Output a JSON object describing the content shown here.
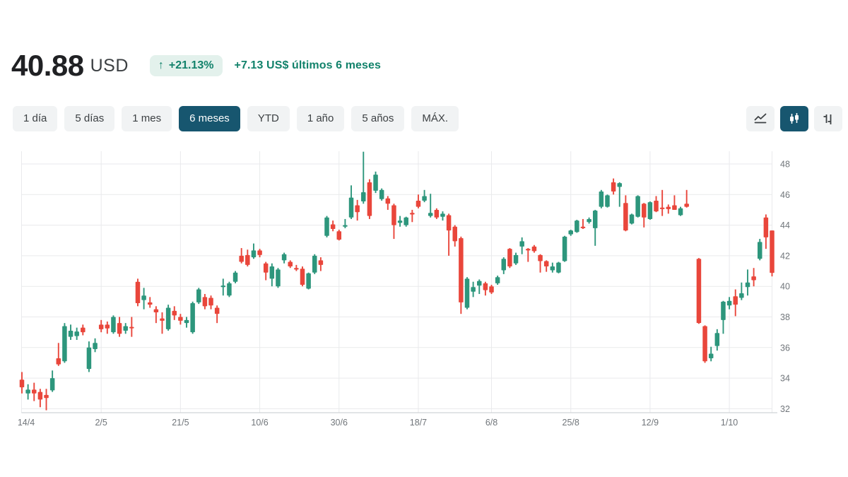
{
  "header": {
    "price": "40.88",
    "currency": "USD",
    "arrow": "↑",
    "change_percent": "+21.13%",
    "change_summary": "+7.13 US$ últimos 6 meses"
  },
  "range_buttons": [
    {
      "label": "1 día",
      "selected": false
    },
    {
      "label": "5 días",
      "selected": false
    },
    {
      "label": "1 mes",
      "selected": false
    },
    {
      "label": "6 meses",
      "selected": true
    },
    {
      "label": "YTD",
      "selected": false
    },
    {
      "label": "1 año",
      "selected": false
    },
    {
      "label": "5 años",
      "selected": false
    },
    {
      "label": "MÁX.",
      "selected": false
    }
  ],
  "chart_type_buttons": [
    {
      "name": "line-chart",
      "selected": false
    },
    {
      "name": "candlestick-chart",
      "selected": true
    },
    {
      "name": "ohlc-chart",
      "selected": false
    }
  ],
  "colors": {
    "up": "#2d967c",
    "down": "#e9463b",
    "accent_selected": "#17566f",
    "positive_text": "#12826b",
    "positive_badge_bg": "#e3f1ec",
    "grid": "#e9eaec",
    "axis_line": "#c6c9cc",
    "tick_text": "#70757a"
  },
  "chart_data": {
    "type": "candlestick",
    "ylim": [
      31.5,
      49
    ],
    "y_ticks": [
      48,
      46,
      44,
      42,
      40,
      38,
      36,
      34,
      32
    ],
    "x_tick_labels": [
      "14/4",
      "2/5",
      "21/5",
      "10/6",
      "30/6",
      "18/7",
      "6/8",
      "25/8",
      "12/9",
      "1/10"
    ],
    "x_tick_indices": [
      0,
      13,
      26,
      39,
      52,
      65,
      77,
      90,
      103,
      116
    ],
    "grid": true,
    "legend": "none",
    "series_note": "candles are [open, high, low, close]; null = session gap",
    "candles": [
      [
        33.9,
        34.4,
        33.0,
        33.4
      ],
      [
        33.0,
        33.6,
        32.6,
        33.25
      ],
      [
        33.25,
        33.7,
        32.5,
        33.0
      ],
      [
        33.1,
        33.3,
        32.1,
        32.6
      ],
      [
        32.9,
        33.3,
        31.9,
        32.7
      ],
      [
        33.2,
        34.5,
        33.1,
        34.0
      ],
      [
        35.3,
        36.3,
        34.8,
        34.9
      ],
      [
        35.1,
        37.6,
        35.0,
        37.4
      ],
      [
        36.7,
        37.5,
        36.5,
        37.1
      ],
      [
        36.75,
        37.3,
        36.5,
        37.05
      ],
      [
        37.3,
        37.5,
        36.8,
        37.0
      ],
      [
        34.6,
        36.4,
        34.4,
        36.0
      ],
      [
        35.9,
        36.6,
        35.7,
        36.3
      ],
      [
        37.5,
        37.8,
        37.0,
        37.2
      ],
      [
        37.5,
        37.7,
        36.9,
        37.25
      ],
      [
        37.0,
        38.1,
        36.9,
        38.0
      ],
      [
        37.6,
        38.0,
        36.7,
        36.9
      ],
      [
        37.1,
        37.6,
        36.9,
        37.4
      ],
      [
        37.35,
        38.0,
        36.7,
        37.3
      ],
      [
        40.3,
        40.5,
        38.7,
        38.9
      ],
      [
        39.1,
        39.9,
        38.5,
        39.4
      ],
      [
        38.95,
        39.3,
        38.6,
        38.8
      ],
      [
        38.5,
        38.7,
        37.6,
        38.3
      ],
      [
        37.9,
        38.3,
        36.9,
        37.75
      ],
      [
        37.2,
        38.8,
        37.1,
        38.6
      ],
      [
        38.4,
        38.7,
        37.8,
        38.1
      ],
      [
        38.0,
        38.2,
        37.5,
        37.75
      ],
      [
        37.6,
        38.0,
        37.3,
        37.8
      ],
      [
        37.0,
        39.0,
        36.9,
        38.9
      ],
      [
        38.95,
        39.9,
        38.85,
        39.8
      ],
      [
        39.3,
        39.5,
        38.5,
        38.7
      ],
      [
        39.25,
        39.4,
        38.5,
        38.75
      ],
      [
        38.6,
        38.75,
        37.6,
        38.2
      ],
      [
        39.95,
        40.5,
        39.4,
        40.05
      ],
      [
        39.4,
        40.3,
        39.3,
        40.2
      ],
      [
        40.3,
        41.0,
        40.2,
        40.9
      ],
      [
        42.0,
        42.5,
        41.5,
        41.6
      ],
      [
        42.05,
        42.4,
        41.3,
        41.4
      ],
      [
        41.9,
        42.8,
        41.8,
        42.35
      ],
      [
        42.35,
        42.45,
        41.9,
        42.05
      ],
      [
        41.5,
        41.6,
        40.4,
        40.9
      ],
      [
        40.5,
        41.5,
        40.0,
        41.3
      ],
      [
        40.0,
        41.2,
        39.9,
        41.1
      ],
      [
        41.7,
        42.2,
        41.5,
        42.1
      ],
      [
        41.6,
        41.7,
        41.2,
        41.3
      ],
      [
        41.2,
        41.4,
        41.0,
        41.1
      ],
      [
        41.15,
        41.3,
        40.0,
        40.1
      ],
      [
        39.85,
        40.9,
        39.8,
        40.85
      ],
      [
        40.9,
        42.1,
        40.8,
        42.0
      ],
      [
        41.7,
        41.9,
        41.0,
        41.4
      ],
      [
        43.3,
        44.6,
        43.2,
        44.5
      ],
      [
        44.05,
        44.3,
        43.6,
        43.75
      ],
      [
        43.6,
        43.7,
        43.0,
        43.05
      ],
      [
        43.9,
        44.4,
        43.8,
        44.0
      ],
      [
        44.5,
        46.6,
        44.4,
        45.8
      ],
      [
        45.3,
        45.65,
        44.3,
        44.85
      ],
      [
        45.55,
        48.8,
        45.4,
        46.15
      ],
      [
        46.8,
        47.0,
        44.4,
        44.6
      ],
      [
        46.25,
        47.5,
        46.1,
        47.3
      ],
      [
        45.7,
        46.4,
        45.6,
        46.3
      ],
      [
        45.75,
        45.9,
        45.0,
        45.4
      ],
      [
        45.3,
        45.4,
        43.1,
        44.0
      ],
      [
        44.15,
        44.6,
        43.9,
        44.3
      ],
      [
        44.0,
        44.55,
        43.9,
        44.5
      ],
      [
        44.8,
        45.0,
        44.2,
        44.7
      ],
      [
        45.6,
        46.0,
        45.1,
        45.2
      ],
      [
        45.6,
        46.3,
        45.5,
        45.9
      ],
      [
        44.6,
        46.05,
        44.5,
        44.8
      ],
      [
        45.0,
        45.1,
        44.4,
        44.5
      ],
      [
        44.55,
        44.9,
        44.3,
        44.75
      ],
      [
        44.65,
        44.75,
        42.0,
        43.65
      ],
      [
        43.9,
        44.0,
        42.6,
        42.95
      ],
      [
        43.15,
        43.25,
        38.2,
        38.95
      ],
      [
        38.6,
        40.6,
        38.5,
        40.5
      ],
      [
        39.65,
        40.3,
        39.3,
        39.95
      ],
      [
        40.05,
        40.45,
        39.5,
        40.35
      ],
      [
        40.2,
        40.3,
        39.4,
        39.75
      ],
      [
        40.0,
        40.1,
        39.5,
        39.6
      ],
      [
        40.2,
        40.7,
        40.1,
        40.6
      ],
      [
        41.05,
        41.9,
        40.8,
        41.8
      ],
      [
        42.45,
        42.5,
        41.2,
        41.3
      ],
      [
        41.5,
        42.2,
        41.4,
        42.05
      ],
      [
        42.6,
        43.2,
        42.1,
        42.95
      ],
      [
        42.45,
        42.5,
        41.6,
        42.35
      ],
      [
        42.6,
        42.7,
        42.2,
        42.3
      ],
      [
        42.05,
        42.1,
        40.9,
        41.65
      ],
      [
        41.65,
        41.7,
        40.95,
        41.3
      ],
      [
        41.05,
        41.55,
        40.9,
        41.3
      ],
      [
        40.9,
        41.6,
        40.85,
        41.55
      ],
      [
        41.65,
        43.3,
        41.6,
        43.25
      ],
      [
        43.4,
        43.7,
        43.3,
        43.65
      ],
      [
        43.55,
        44.35,
        43.5,
        44.3
      ],
      [
        43.9,
        44.4,
        43.75,
        43.8
      ],
      [
        44.2,
        44.5,
        44.1,
        44.4
      ],
      [
        43.8,
        45.0,
        42.65,
        44.95
      ],
      [
        45.2,
        46.3,
        45.1,
        46.2
      ],
      [
        45.2,
        46.0,
        45.15,
        45.95
      ],
      [
        46.8,
        47.05,
        46.0,
        46.2
      ],
      [
        46.5,
        46.8,
        45.2,
        46.75
      ],
      [
        45.45,
        45.95,
        43.6,
        43.65
      ],
      [
        44.1,
        44.75,
        44.05,
        44.7
      ],
      [
        44.55,
        45.95,
        44.5,
        45.9
      ],
      [
        45.4,
        45.45,
        43.85,
        44.5
      ],
      [
        44.4,
        45.55,
        44.35,
        45.5
      ],
      [
        45.6,
        45.9,
        44.85,
        44.9
      ],
      [
        45.15,
        46.3,
        44.6,
        45.05
      ],
      [
        45.2,
        45.35,
        44.75,
        45.05
      ],
      [
        45.3,
        45.95,
        45.0,
        45.0
      ],
      [
        44.65,
        45.2,
        44.6,
        45.1
      ],
      [
        45.4,
        46.3,
        45.15,
        45.2
      ],
      null,
      [
        41.8,
        41.85,
        37.55,
        37.6
      ],
      [
        37.4,
        37.45,
        35.0,
        35.1
      ],
      [
        35.3,
        36.05,
        35.1,
        35.6
      ],
      [
        36.1,
        37.2,
        35.8,
        36.95
      ],
      [
        37.8,
        39.05,
        36.9,
        39.0
      ],
      [
        38.75,
        39.3,
        38.5,
        39.05
      ],
      [
        39.35,
        39.8,
        38.05,
        38.8
      ],
      [
        39.25,
        40.25,
        39.1,
        39.55
      ],
      [
        39.95,
        41.1,
        39.4,
        40.25
      ],
      [
        40.65,
        41.2,
        40.0,
        40.4
      ],
      [
        41.8,
        43.1,
        41.7,
        42.9
      ],
      [
        44.5,
        44.7,
        42.45,
        43.2
      ],
      [
        43.65,
        43.65,
        40.65,
        40.88
      ]
    ]
  }
}
